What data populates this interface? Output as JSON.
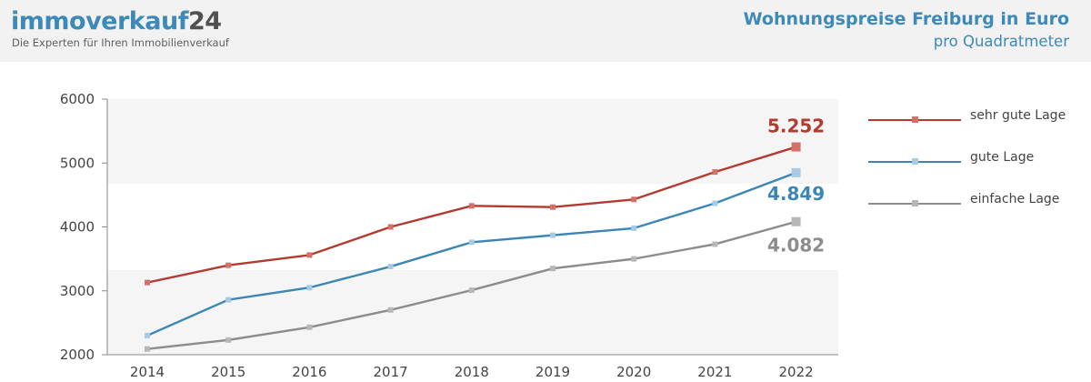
{
  "header": {
    "logo_main": "immoverkauf",
    "logo_number": "24",
    "tagline": "Die Experten für Ihren Immobilienverkauf",
    "title": "Wohnungspreise Freiburg in Euro",
    "subtitle": "pro Quadratmeter"
  },
  "colors": {
    "brand": "#3d8ab8",
    "red": "#b33a2f",
    "blue": "#3b86b5",
    "gray": "#8c8c8c"
  },
  "chart_data": {
    "type": "line",
    "categories": [
      "2014",
      "2015",
      "2016",
      "2017",
      "2018",
      "2019",
      "2020",
      "2021",
      "2022"
    ],
    "ylim": [
      2000,
      6000
    ],
    "yticks": [
      2000,
      3000,
      4000,
      5000,
      6000
    ],
    "ytick_labels": [
      "2000",
      "3000",
      "4000",
      "5000",
      "6000"
    ],
    "series": [
      {
        "name": "sehr gute Lage",
        "color": "#b33a2f",
        "marker": "#d4706a",
        "end_label": "5.252",
        "values": [
          3130,
          3400,
          3560,
          4000,
          4330,
          4310,
          4430,
          4860,
          5252
        ]
      },
      {
        "name": "gute Lage",
        "color": "#3b86b5",
        "marker": "#a8cbe4",
        "end_label": "4.849",
        "values": [
          2300,
          2860,
          3050,
          3380,
          3760,
          3870,
          3980,
          4370,
          4849
        ]
      },
      {
        "name": "einfache Lage",
        "color": "#8c8c8c",
        "marker": "#b7b7b7",
        "end_label": "4.082",
        "values": [
          2090,
          2230,
          2430,
          2700,
          3010,
          3350,
          3500,
          3730,
          4082
        ]
      }
    ]
  }
}
